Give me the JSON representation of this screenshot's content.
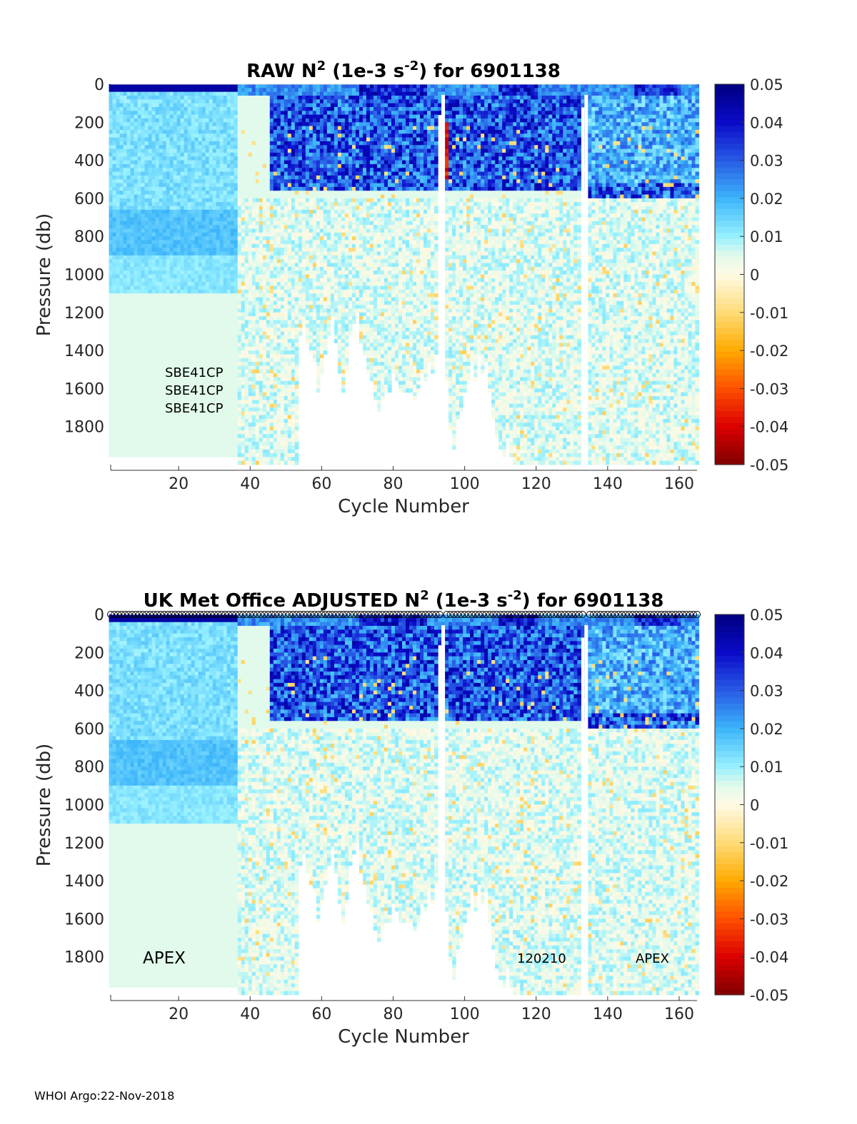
{
  "chart_data": [
    {
      "type": "heatmap",
      "title_main": "RAW N",
      "title_sup": "2",
      "title_mid": " (1e-3 s",
      "title_sup2": "-2",
      "title_end": ") for 6901138",
      "xlabel": "Cycle Number",
      "ylabel": "Pressure (db)",
      "xlim": [
        1,
        165
      ],
      "ylim": [
        0,
        2000
      ],
      "y_reversed": true,
      "xticks": [
        20,
        40,
        60,
        80,
        100,
        120,
        140,
        160
      ],
      "yticks": [
        0,
        200,
        400,
        600,
        800,
        1000,
        1200,
        1400,
        1600,
        1800
      ],
      "colorbar": {
        "min": -0.05,
        "max": 0.05,
        "ticks": [
          "0.05",
          "0.04",
          "0.03",
          "0.02",
          "0.01",
          "0",
          "-0.01",
          "-0.02",
          "-0.03",
          "-0.04",
          "-0.05"
        ]
      },
      "annotations": [
        "SBE41CP",
        "SBE41CP",
        "SBE41CP"
      ],
      "profile_depths_db": [
        1950,
        1950,
        1950,
        1950,
        1950,
        1950,
        1950,
        1950,
        1950,
        1950,
        1950,
        1950,
        1950,
        1950,
        1950,
        1950,
        1950,
        1950,
        1950,
        1950,
        1950,
        1950,
        1950,
        1950,
        1950,
        1950,
        1950,
        1950,
        1950,
        1950,
        1950,
        1950,
        1950,
        1950,
        1950,
        1950,
        1990,
        1990,
        1990,
        1990,
        1990,
        1990,
        1990,
        1990,
        1990,
        1990,
        1990,
        1990,
        1990,
        1990,
        1990,
        1990,
        1990,
        1300,
        1250,
        1350,
        1400,
        1450,
        1600,
        1500,
        1400,
        1300,
        1200,
        1350,
        1500,
        1600,
        1500,
        1300,
        1250,
        1180,
        1350,
        1400,
        1500,
        1550,
        1650,
        1700,
        1650,
        1600,
        1600,
        1500,
        1550,
        1600,
        1600,
        1600,
        1600,
        1650,
        1600,
        1500,
        1550,
        1450,
        1500,
        1400,
        150,
        1500,
        1550,
        1800,
        1900,
        1750,
        1700,
        1600,
        1550,
        1450,
        1550,
        1400,
        1500,
        1450,
        1600,
        1750,
        1850,
        1900,
        1950,
        1850,
        1950,
        1990,
        1990,
        1990,
        1990,
        1990,
        1990,
        1990,
        1990,
        1990,
        1990,
        1990,
        1990,
        1990,
        1990,
        1990,
        1990,
        1990,
        1990,
        1990,
        100,
        1990,
        1990,
        1990,
        1990,
        1990,
        1990,
        1990,
        1990,
        1990,
        1990,
        1990,
        1990,
        1990,
        1990,
        1990,
        1990,
        1990,
        1990,
        1990,
        1990,
        1990,
        1990,
        1990,
        1990,
        1990,
        1990,
        1990,
        1990,
        1990,
        1990,
        1990,
        1990
      ]
    },
    {
      "type": "heatmap",
      "title_main": "UK Met Office  ADJUSTED N",
      "title_sup": "2",
      "title_mid": " (1e-3 s",
      "title_sup2": "-2",
      "title_end": ") for 6901138",
      "xlabel": "Cycle Number",
      "ylabel": "Pressure (db)",
      "xlim": [
        1,
        165
      ],
      "ylim": [
        0,
        2000
      ],
      "y_reversed": true,
      "xticks": [
        20,
        40,
        60,
        80,
        100,
        120,
        140,
        160
      ],
      "yticks": [
        0,
        200,
        400,
        600,
        800,
        1000,
        1200,
        1400,
        1600,
        1800
      ],
      "colorbar": {
        "min": -0.05,
        "max": 0.05,
        "ticks": [
          "0.05",
          "0.04",
          "0.03",
          "0.02",
          "0.01",
          "0",
          "-0.01",
          "-0.02",
          "-0.03",
          "-0.04",
          "-0.05"
        ]
      },
      "annotations": [
        "APEX",
        "120210",
        "APEX"
      ],
      "surface_markers": "circles at 0 db for each cycle"
    }
  ],
  "footer": "WHOI Argo:22-Nov-2018"
}
